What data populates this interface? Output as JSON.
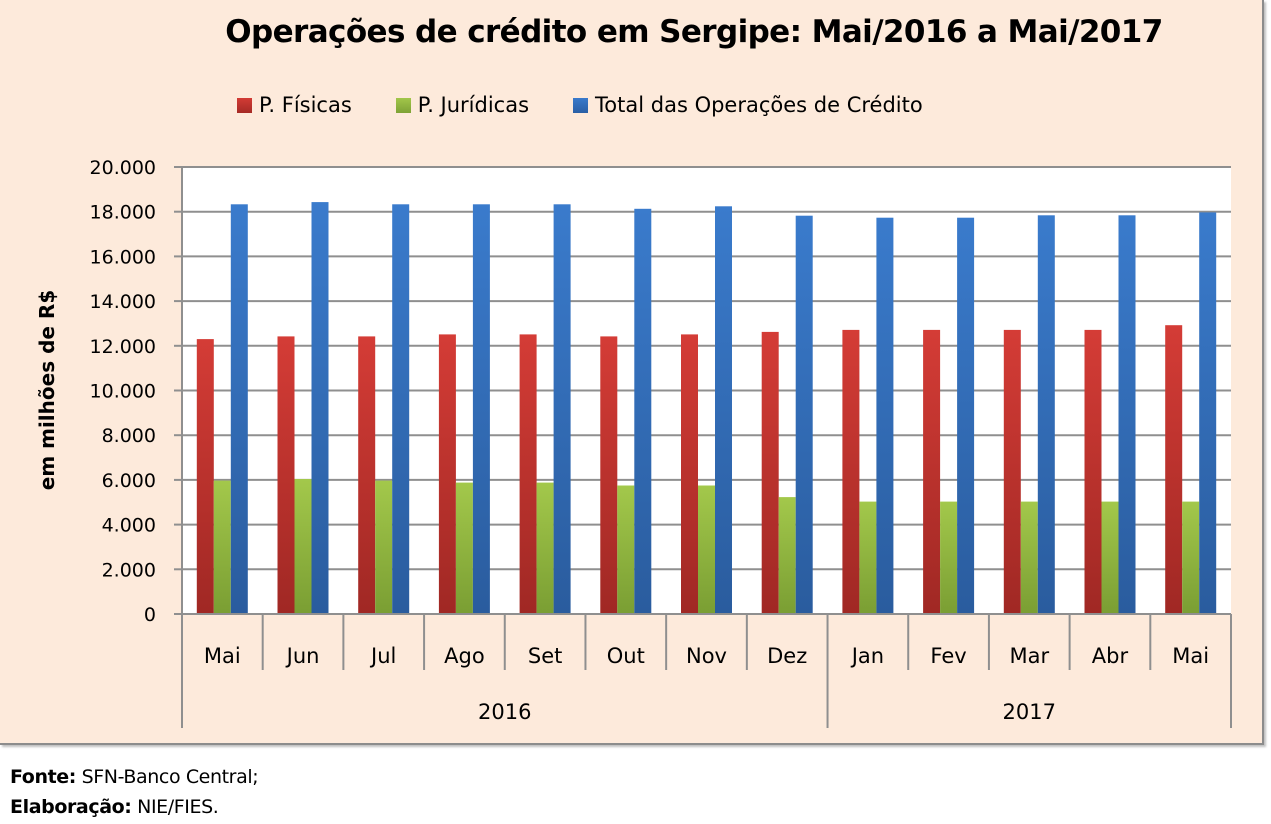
{
  "chart_data": {
    "type": "bar",
    "title": "Operações de crédito em Sergipe: Mai/2016 a Mai/2017",
    "xlabel": "",
    "ylabel": "em milhões de R$",
    "ylim": [
      0,
      20000
    ],
    "yticks": [
      0,
      2000,
      4000,
      6000,
      8000,
      10000,
      12000,
      14000,
      16000,
      18000,
      20000
    ],
    "ytick_labels": [
      "0",
      "2.000",
      "4.000",
      "6.000",
      "8.000",
      "10.000",
      "12.000",
      "14.000",
      "16.000",
      "18.000",
      "20.000"
    ],
    "grid": true,
    "legend_position": "top",
    "categories": [
      "Mai",
      "Jun",
      "Jul",
      "Ago",
      "Set",
      "Out",
      "Nov",
      "Dez",
      "Jan",
      "Fev",
      "Mar",
      "Abr",
      "Mai"
    ],
    "groups": [
      {
        "label": "2016",
        "count": 8
      },
      {
        "label": "2017",
        "count": 5
      }
    ],
    "series": [
      {
        "name": "P. Físicas",
        "color": "#c0392f",
        "values": [
          12300,
          12420,
          12420,
          12510,
          12510,
          12420,
          12510,
          12620,
          12710,
          12710,
          12710,
          12710,
          12920
        ]
      },
      {
        "name": "P. Jurídicas",
        "color": "#8db33f",
        "values": [
          5970,
          6040,
          5970,
          5880,
          5880,
          5750,
          5750,
          5230,
          5030,
          5030,
          5030,
          5030,
          5030
        ]
      },
      {
        "name": "Total das Operações de Crédito",
        "color": "#2f6db8",
        "values": [
          18330,
          18430,
          18330,
          18330,
          18330,
          18130,
          18240,
          17820,
          17730,
          17730,
          17840,
          17840,
          17970
        ]
      }
    ]
  },
  "footer": {
    "source_label": "Fonte:",
    "source_value": " SFN-Banco Central;",
    "credit_label": "Elaboração:",
    "credit_value": " NIE/FIES."
  }
}
